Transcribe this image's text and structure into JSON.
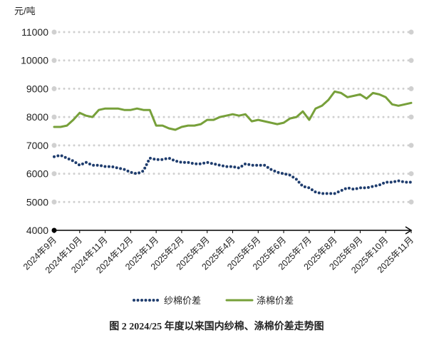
{
  "chart_data": {
    "type": "line",
    "y_label": "元/吨",
    "caption": "图 2 2024/25 年度以来国内纱棉、涤棉价差走势图",
    "categories": [
      "2024年9月",
      null,
      null,
      null,
      "2024年10月",
      null,
      null,
      null,
      "2024年11月",
      null,
      null,
      null,
      "2024年12月",
      null,
      null,
      null,
      "2025年1月",
      null,
      null,
      null,
      "2025年2月",
      null,
      null,
      null,
      "2025年3月",
      null,
      null,
      null,
      "2025年4月",
      null,
      null,
      null,
      "2025年5月",
      null,
      null,
      null,
      "2025年6月",
      null,
      null,
      null,
      "2025年7月",
      null,
      null,
      null,
      "2025年8月",
      null,
      null,
      null,
      "2025年9月",
      null,
      null,
      null,
      "2025年10月",
      null,
      null,
      null,
      "2025年11月"
    ],
    "series": [
      {
        "name": "纱棉价差",
        "color": "#1f3d6e",
        "style": "dotted",
        "values": [
          6600,
          6650,
          6550,
          6450,
          6300,
          6400,
          6300,
          6300,
          6250,
          6250,
          6200,
          6150,
          6050,
          6000,
          6100,
          6550,
          6500,
          6500,
          6550,
          6450,
          6400,
          6400,
          6350,
          6350,
          6400,
          6350,
          6300,
          6250,
          6250,
          6200,
          6350,
          6300,
          6300,
          6300,
          6150,
          6050,
          6000,
          5950,
          5800,
          5550,
          5500,
          5350,
          5300,
          5300,
          5300,
          5400,
          5500,
          5450,
          5500,
          5500,
          5550,
          5600,
          5700,
          5700,
          5750,
          5700,
          5700
        ]
      },
      {
        "name": "涤棉价差",
        "color": "#77a03a",
        "style": "solid",
        "values": [
          7650,
          7650,
          7700,
          7900,
          8150,
          8050,
          8000,
          8250,
          8300,
          8300,
          8300,
          8250,
          8250,
          8300,
          8250,
          8250,
          7700,
          7700,
          7600,
          7550,
          7650,
          7700,
          7700,
          7750,
          7900,
          7900,
          8000,
          8050,
          8100,
          8050,
          8100,
          7850,
          7900,
          7850,
          7800,
          7750,
          7800,
          7950,
          8000,
          8200,
          7900,
          8300,
          8400,
          8600,
          8900,
          8850,
          8700,
          8750,
          8800,
          8650,
          8850,
          8800,
          8700,
          8450,
          8400,
          8450,
          8500
        ]
      }
    ],
    "ylim": [
      4000,
      11000
    ],
    "yticks": [
      4000,
      5000,
      6000,
      7000,
      8000,
      9000,
      10000,
      11000
    ],
    "grid": true,
    "legend": "bottom"
  }
}
